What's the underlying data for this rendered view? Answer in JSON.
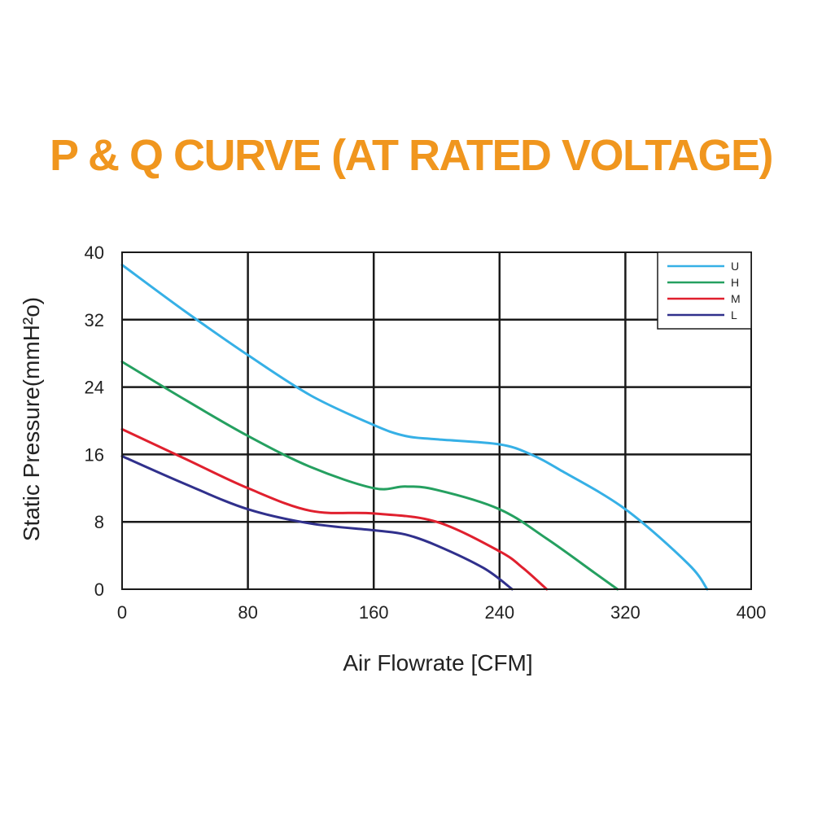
{
  "chart_data": {
    "type": "line",
    "title": "P & Q CURVE (AT RATED VOLTAGE)",
    "xlabel": "Air  Flowrate   [CFM]",
    "ylabel": "Static Pressure(mmH²o)",
    "xlim": [
      0,
      400
    ],
    "ylim": [
      0,
      40
    ],
    "xticks": [
      0,
      80,
      160,
      240,
      320,
      400
    ],
    "yticks": [
      0,
      8,
      16,
      24,
      32,
      40
    ],
    "grid": true,
    "legend_position": "top-right",
    "series": [
      {
        "name": "U",
        "color": "#36b0e6",
        "x": [
          0,
          40,
          80,
          120,
          160,
          180,
          200,
          240,
          260,
          280,
          320,
          360,
          372
        ],
        "y": [
          38.5,
          33,
          27.8,
          23,
          19.5,
          18.2,
          17.8,
          17.2,
          16,
          14,
          9.5,
          3,
          0
        ]
      },
      {
        "name": "H",
        "color": "#25a060",
        "x": [
          0,
          40,
          80,
          120,
          160,
          180,
          200,
          240,
          270,
          300,
          315
        ],
        "y": [
          27,
          22.5,
          18.2,
          14.5,
          12,
          12.2,
          11.8,
          9.5,
          6,
          2,
          0
        ]
      },
      {
        "name": "M",
        "color": "#e0202e",
        "x": [
          0,
          40,
          80,
          120,
          160,
          200,
          240,
          255,
          270
        ],
        "y": [
          19,
          15.5,
          12,
          9.3,
          9,
          8,
          4.5,
          2.5,
          0
        ]
      },
      {
        "name": "L",
        "color": "#30308c",
        "x": [
          0,
          40,
          80,
          120,
          160,
          180,
          200,
          230,
          248
        ],
        "y": [
          15.8,
          12.5,
          9.5,
          7.8,
          7,
          6.5,
          5.2,
          2.5,
          0
        ]
      }
    ]
  }
}
